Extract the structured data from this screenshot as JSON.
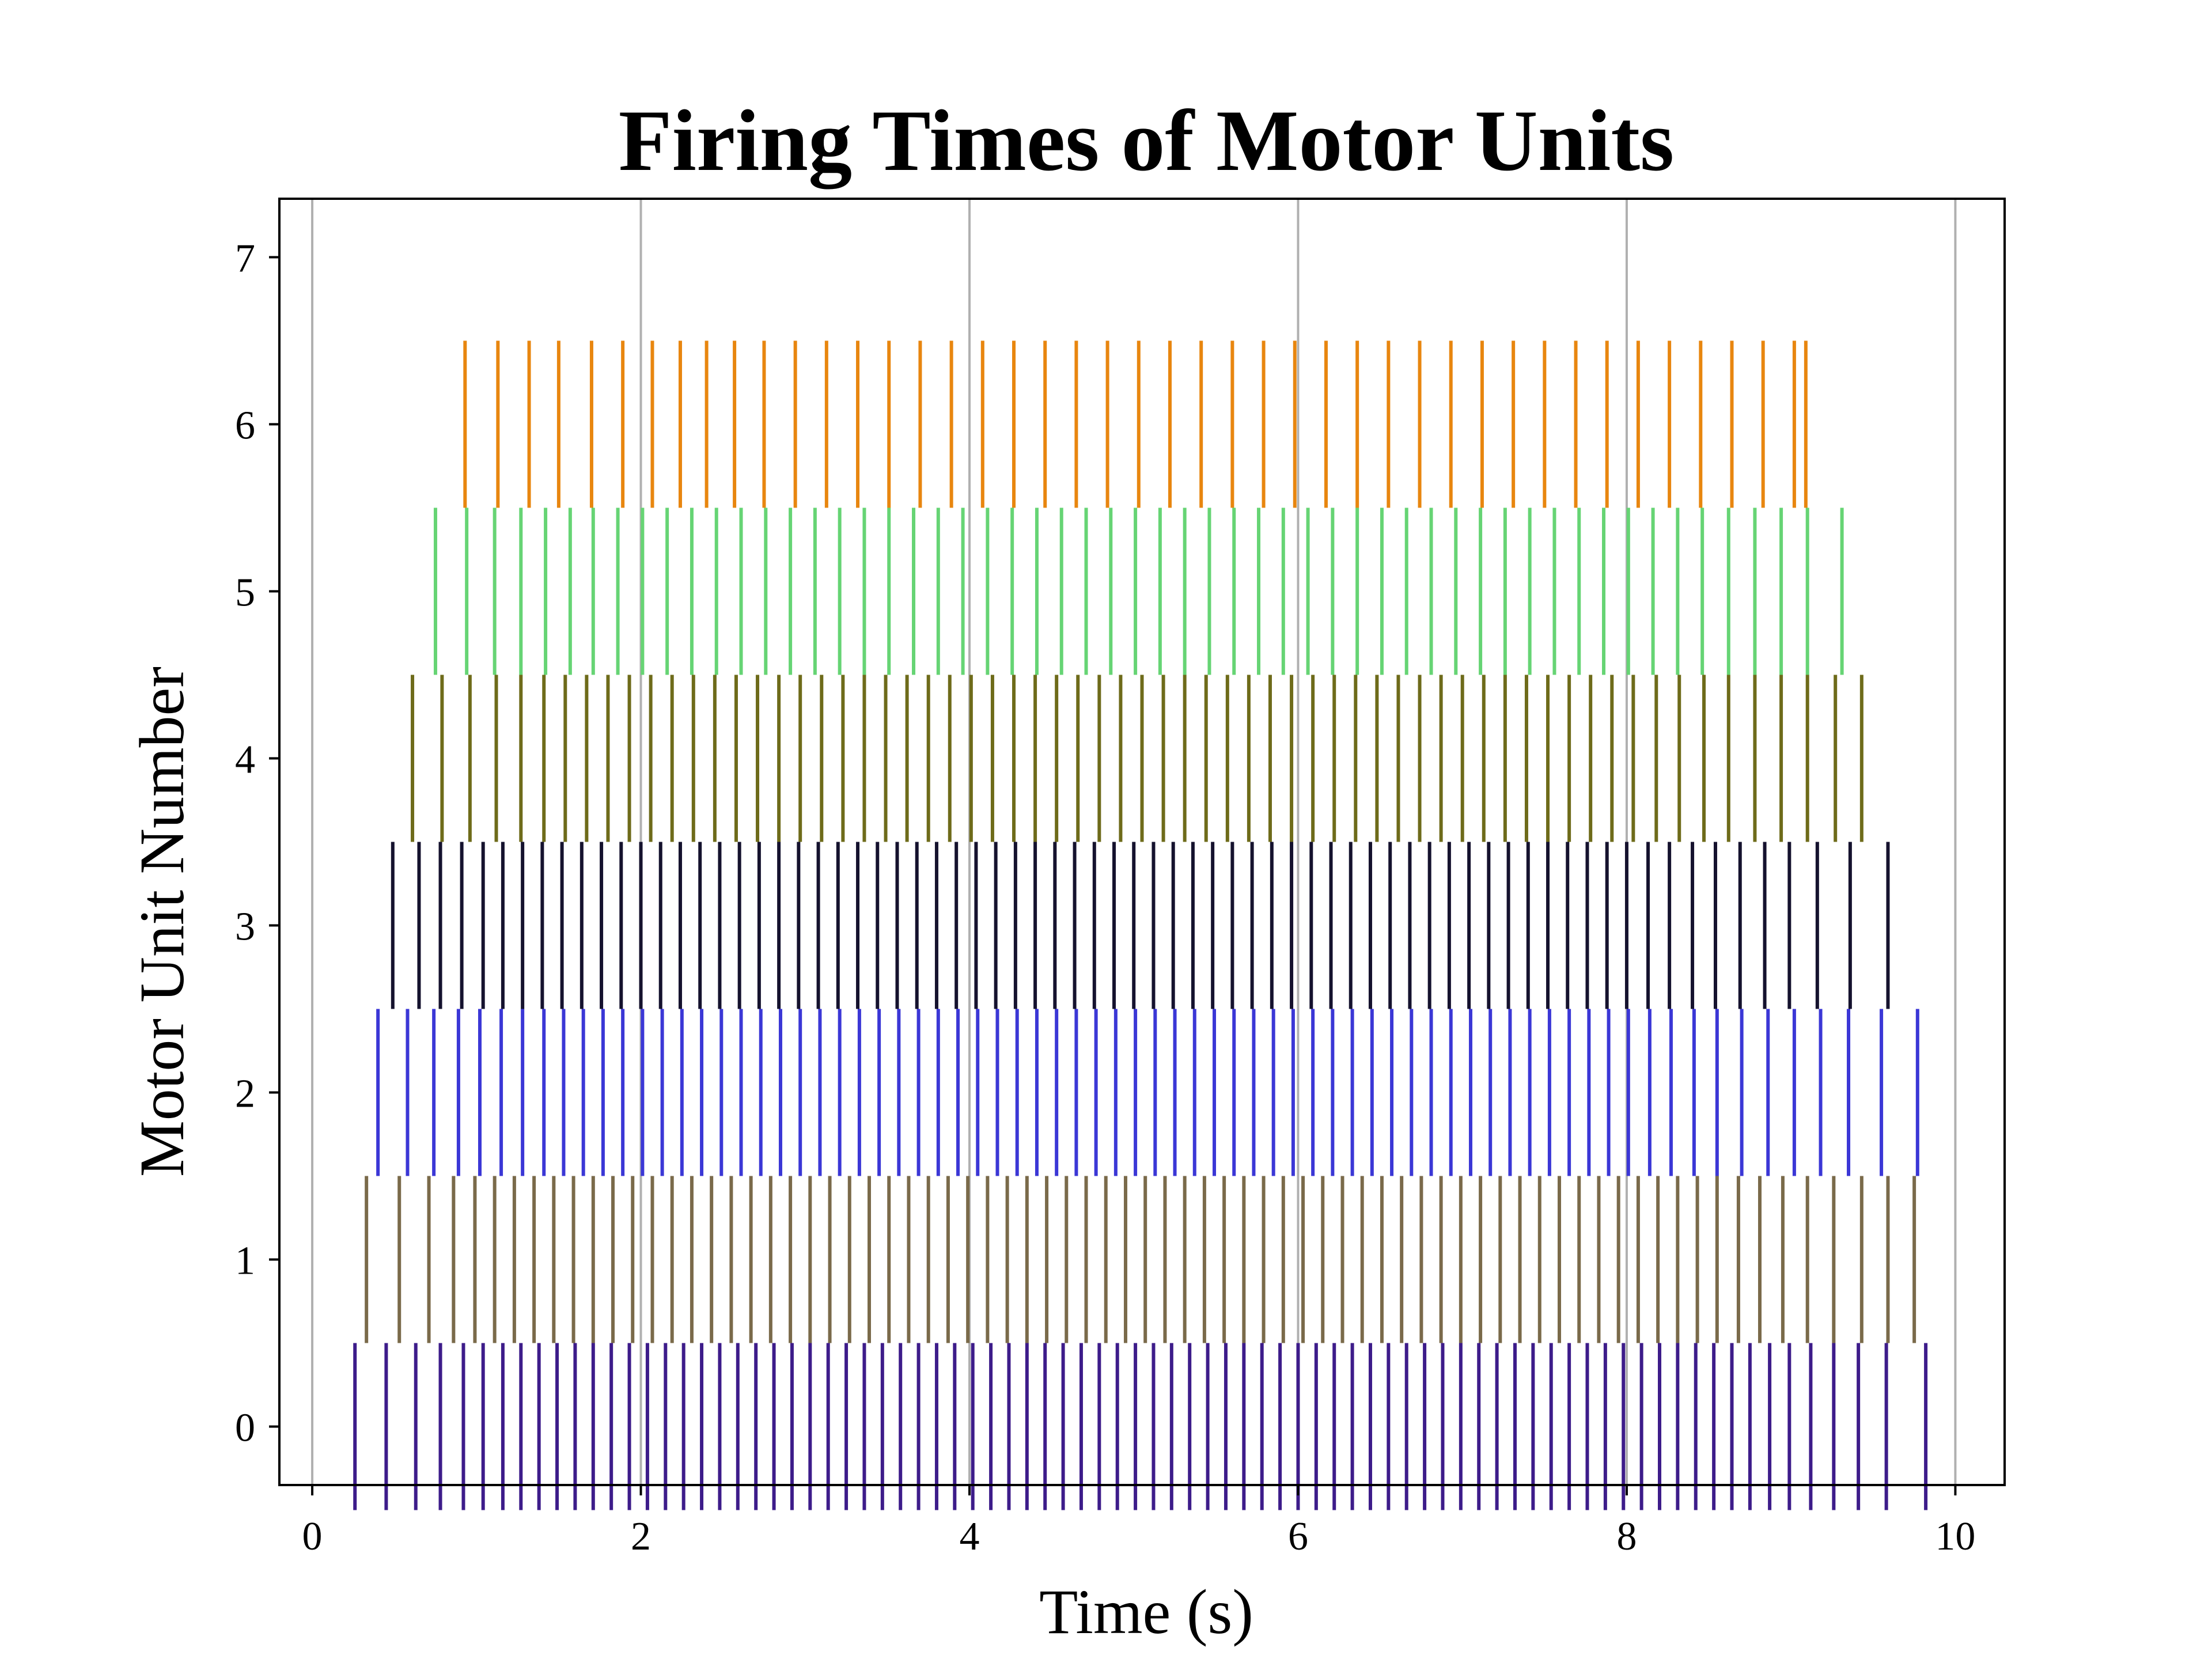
{
  "chart_data": {
    "type": "scatter",
    "subtype": "eventplot",
    "title": "Firing Times of Motor Units",
    "xlabel": "Time (s)",
    "ylabel": "Motor Unit Number",
    "xlim": [
      -0.2,
      10.3
    ],
    "ylim": [
      -0.35,
      7.35
    ],
    "xticks": [
      0,
      2,
      4,
      6,
      8,
      10
    ],
    "xtick_labels": [
      "0",
      "2",
      "4",
      "6",
      "8",
      "10"
    ],
    "yticks": [
      0,
      1,
      2,
      3,
      4,
      5,
      6,
      7
    ],
    "ytick_labels": [
      "0",
      "1",
      "2",
      "3",
      "4",
      "5",
      "6",
      "7"
    ],
    "grid": "vertical major gridlines on",
    "legend": "none",
    "line_length": 1.0,
    "series": [
      {
        "offset": 0,
        "color": "#3d1c8a",
        "times": [
          0.26,
          0.45,
          0.63,
          0.78,
          0.92,
          1.04,
          1.16,
          1.27,
          1.38,
          1.49,
          1.6,
          1.71,
          1.82,
          1.93,
          2.04,
          2.15,
          2.26,
          2.37,
          2.48,
          2.59,
          2.7,
          2.81,
          2.92,
          3.03,
          3.14,
          3.25,
          3.36,
          3.47,
          3.58,
          3.69,
          3.8,
          3.91,
          4.02,
          4.13,
          4.24,
          4.35,
          4.46,
          4.57,
          4.68,
          4.79,
          4.9,
          5.01,
          5.12,
          5.23,
          5.34,
          5.45,
          5.56,
          5.67,
          5.78,
          5.89,
          6.0,
          6.11,
          6.22,
          6.33,
          6.44,
          6.55,
          6.66,
          6.77,
          6.88,
          6.99,
          7.1,
          7.21,
          7.32,
          7.43,
          7.54,
          7.65,
          7.76,
          7.87,
          7.98,
          8.09,
          8.2,
          8.31,
          8.42,
          8.53,
          8.64,
          8.75,
          8.87,
          8.99,
          9.12,
          9.26,
          9.41,
          9.58,
          9.82
        ]
      },
      {
        "offset": 1,
        "color": "#7a6a4a",
        "times": [
          0.33,
          0.53,
          0.71,
          0.86,
          0.99,
          1.11,
          1.23,
          1.35,
          1.47,
          1.59,
          1.71,
          1.83,
          1.95,
          2.07,
          2.19,
          2.31,
          2.43,
          2.55,
          2.67,
          2.79,
          2.91,
          3.03,
          3.15,
          3.27,
          3.39,
          3.51,
          3.63,
          3.75,
          3.87,
          3.99,
          4.11,
          4.23,
          4.35,
          4.47,
          4.59,
          4.71,
          4.83,
          4.95,
          5.07,
          5.19,
          5.31,
          5.43,
          5.55,
          5.67,
          5.79,
          5.91,
          6.03,
          6.15,
          6.27,
          6.39,
          6.51,
          6.63,
          6.75,
          6.87,
          6.99,
          7.11,
          7.23,
          7.35,
          7.47,
          7.59,
          7.71,
          7.83,
          7.95,
          8.07,
          8.19,
          8.31,
          8.43,
          8.55,
          8.68,
          8.81,
          8.95,
          9.1,
          9.26,
          9.43,
          9.59,
          9.75
        ]
      },
      {
        "offset": 2,
        "color": "#3b37d6",
        "times": [
          0.4,
          0.58,
          0.74,
          0.89,
          1.02,
          1.15,
          1.28,
          1.41,
          1.53,
          1.65,
          1.77,
          1.89,
          2.01,
          2.13,
          2.25,
          2.37,
          2.49,
          2.61,
          2.73,
          2.85,
          2.97,
          3.09,
          3.21,
          3.33,
          3.45,
          3.57,
          3.69,
          3.81,
          3.93,
          4.05,
          4.17,
          4.29,
          4.41,
          4.53,
          4.65,
          4.77,
          4.89,
          5.01,
          5.13,
          5.25,
          5.37,
          5.49,
          5.61,
          5.73,
          5.85,
          5.97,
          6.09,
          6.21,
          6.33,
          6.45,
          6.57,
          6.69,
          6.81,
          6.93,
          7.05,
          7.17,
          7.29,
          7.41,
          7.53,
          7.65,
          7.77,
          7.89,
          8.01,
          8.14,
          8.27,
          8.41,
          8.55,
          8.7,
          8.86,
          9.02,
          9.18,
          9.35,
          9.55,
          9.77
        ]
      },
      {
        "offset": 3,
        "color": "#15122e",
        "times": [
          0.49,
          0.65,
          0.78,
          0.91,
          1.04,
          1.16,
          1.28,
          1.4,
          1.52,
          1.64,
          1.76,
          1.88,
          2.0,
          2.12,
          2.24,
          2.36,
          2.48,
          2.6,
          2.72,
          2.84,
          2.96,
          3.08,
          3.2,
          3.32,
          3.44,
          3.56,
          3.68,
          3.8,
          3.92,
          4.04,
          4.16,
          4.28,
          4.4,
          4.52,
          4.64,
          4.76,
          4.88,
          5.0,
          5.12,
          5.24,
          5.36,
          5.48,
          5.6,
          5.72,
          5.84,
          5.96,
          6.08,
          6.2,
          6.32,
          6.44,
          6.56,
          6.68,
          6.8,
          6.92,
          7.04,
          7.16,
          7.28,
          7.4,
          7.52,
          7.64,
          7.76,
          7.88,
          8.0,
          8.13,
          8.26,
          8.4,
          8.54,
          8.69,
          8.84,
          8.99,
          9.16,
          9.36,
          9.59
        ]
      },
      {
        "offset": 4,
        "color": "#6e6b1a",
        "times": [
          0.61,
          0.79,
          0.96,
          1.12,
          1.27,
          1.41,
          1.54,
          1.67,
          1.8,
          1.93,
          2.06,
          2.19,
          2.32,
          2.45,
          2.58,
          2.71,
          2.84,
          2.97,
          3.1,
          3.23,
          3.36,
          3.49,
          3.62,
          3.75,
          3.88,
          4.01,
          4.14,
          4.27,
          4.4,
          4.53,
          4.66,
          4.79,
          4.92,
          5.05,
          5.18,
          5.31,
          5.44,
          5.57,
          5.7,
          5.83,
          5.96,
          6.09,
          6.22,
          6.35,
          6.48,
          6.61,
          6.74,
          6.87,
          7.0,
          7.13,
          7.26,
          7.39,
          7.52,
          7.65,
          7.78,
          7.91,
          8.04,
          8.18,
          8.32,
          8.47,
          8.62,
          8.78,
          8.94,
          9.1,
          9.27,
          9.43
        ]
      },
      {
        "offset": 5,
        "color": "#66d474",
        "times": [
          0.75,
          0.94,
          1.11,
          1.27,
          1.42,
          1.57,
          1.71,
          1.86,
          2.01,
          2.16,
          2.31,
          2.46,
          2.61,
          2.76,
          2.91,
          3.06,
          3.21,
          3.36,
          3.51,
          3.66,
          3.81,
          3.96,
          4.11,
          4.26,
          4.41,
          4.56,
          4.71,
          4.86,
          5.01,
          5.16,
          5.31,
          5.46,
          5.61,
          5.76,
          5.91,
          6.06,
          6.21,
          6.36,
          6.51,
          6.66,
          6.81,
          6.96,
          7.11,
          7.26,
          7.41,
          7.56,
          7.71,
          7.86,
          8.01,
          8.16,
          8.31,
          8.46,
          8.62,
          8.78,
          8.94,
          9.1,
          9.31
        ]
      },
      {
        "offset": 6,
        "color": "#e8860f",
        "times": [
          0.93,
          1.13,
          1.32,
          1.5,
          1.7,
          1.89,
          2.07,
          2.24,
          2.4,
          2.57,
          2.75,
          2.94,
          3.13,
          3.32,
          3.51,
          3.7,
          3.89,
          4.08,
          4.27,
          4.46,
          4.65,
          4.84,
          5.03,
          5.22,
          5.41,
          5.6,
          5.79,
          5.98,
          6.17,
          6.36,
          6.55,
          6.74,
          6.93,
          7.12,
          7.31,
          7.5,
          7.69,
          7.88,
          8.07,
          8.26,
          8.45,
          8.64,
          8.83,
          9.02,
          9.09
        ]
      }
    ]
  }
}
